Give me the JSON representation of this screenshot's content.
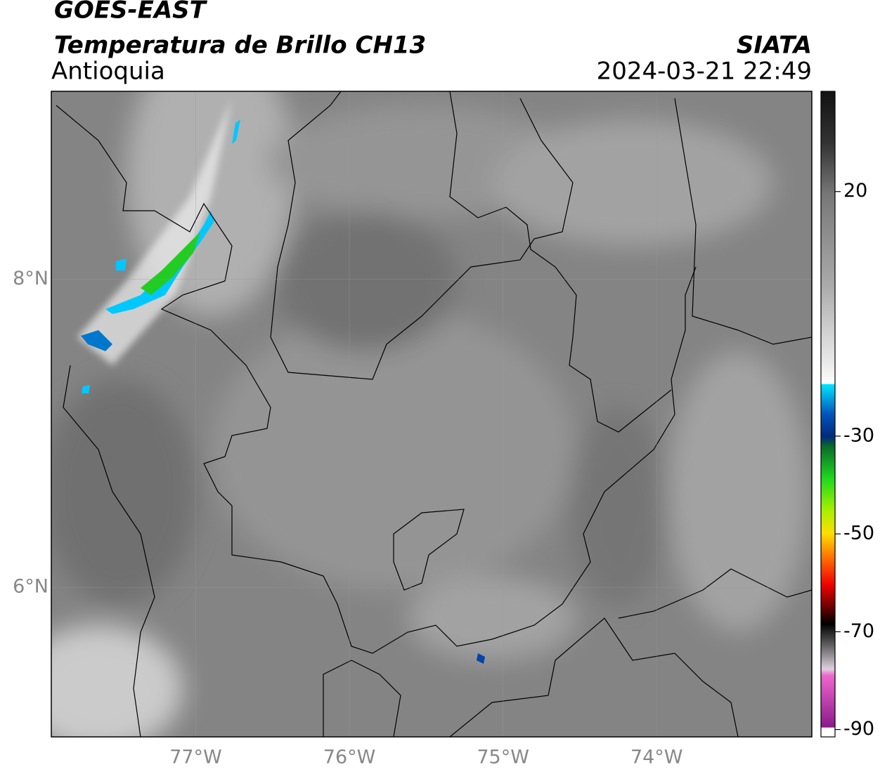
{
  "header": {
    "satellite": "GOES-EAST",
    "product": "Temperatura de Brillo CH13",
    "region": "Antioquia",
    "source": "SIATA",
    "datetime": "2024-03-21 22:49"
  },
  "map": {
    "xlim": [
      -77.94,
      -72.99
    ],
    "ylim": [
      5.03,
      9.22
    ],
    "xticks": [
      {
        "value": -77,
        "label": "77°W"
      },
      {
        "value": -76,
        "label": "76°W"
      },
      {
        "value": -75,
        "label": "75°W"
      },
      {
        "value": -74,
        "label": "74°W"
      }
    ],
    "yticks": [
      {
        "value": 6,
        "label": "6°N"
      },
      {
        "value": 8,
        "label": "8°N"
      }
    ],
    "grid": true
  },
  "colorbar": {
    "lim": [
      -91.5,
      40.5
    ],
    "ticks": [
      -90,
      -70,
      -50,
      -30,
      20
    ]
  }
}
